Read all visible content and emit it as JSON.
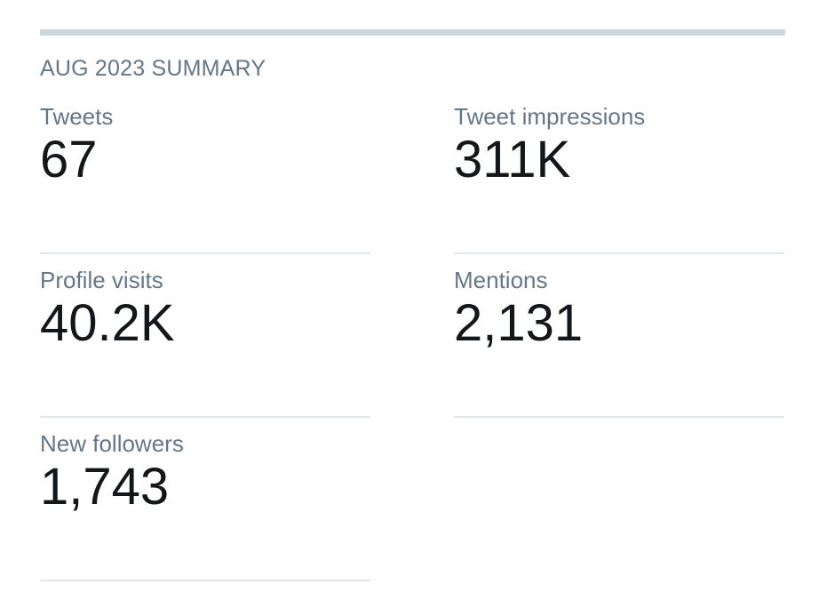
{
  "summary": {
    "title": "AUG 2023 SUMMARY",
    "stats": [
      {
        "label": "Tweets",
        "value": "67"
      },
      {
        "label": "Tweet impressions",
        "value": "311K"
      },
      {
        "label": "Profile visits",
        "value": "40.2K"
      },
      {
        "label": "Mentions",
        "value": "2,131"
      },
      {
        "label": "New followers",
        "value": "1,743"
      }
    ]
  }
}
